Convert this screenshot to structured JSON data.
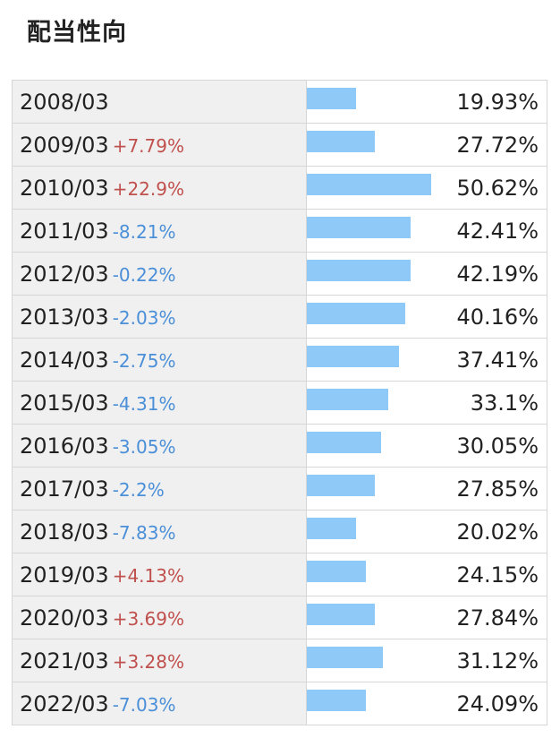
{
  "title": "配当性向",
  "chart_data": {
    "type": "bar",
    "title": "配当性向",
    "unit": "%",
    "rows": [
      {
        "year": "2008/03",
        "change": "",
        "value": 19.93,
        "display": "19.93%"
      },
      {
        "year": "2009/03",
        "change": "+7.79%",
        "value": 27.72,
        "display": "27.72%"
      },
      {
        "year": "2010/03",
        "change": "+22.9%",
        "value": 50.62,
        "display": "50.62%"
      },
      {
        "year": "2011/03",
        "change": "-8.21%",
        "value": 42.41,
        "display": "42.41%"
      },
      {
        "year": "2012/03",
        "change": "-0.22%",
        "value": 42.19,
        "display": "42.19%"
      },
      {
        "year": "2013/03",
        "change": "-2.03%",
        "value": 40.16,
        "display": "40.16%"
      },
      {
        "year": "2014/03",
        "change": "-2.75%",
        "value": 37.41,
        "display": "37.41%"
      },
      {
        "year": "2015/03",
        "change": "-4.31%",
        "value": 33.1,
        "display": "33.1%"
      },
      {
        "year": "2016/03",
        "change": "-3.05%",
        "value": 30.05,
        "display": "30.05%"
      },
      {
        "year": "2017/03",
        "change": "-2.2%",
        "value": 27.85,
        "display": "27.85%"
      },
      {
        "year": "2018/03",
        "change": "-7.83%",
        "value": 20.02,
        "display": "20.02%"
      },
      {
        "year": "2019/03",
        "change": "+4.13%",
        "value": 24.15,
        "display": "24.15%"
      },
      {
        "year": "2020/03",
        "change": "+3.69%",
        "value": 27.84,
        "display": "27.84%"
      },
      {
        "year": "2021/03",
        "change": "+3.28%",
        "value": 31.12,
        "display": "31.12%"
      },
      {
        "year": "2022/03",
        "change": "-7.03%",
        "value": 24.09,
        "display": "24.09%"
      }
    ],
    "colors": {
      "bar": "#8ec9f8",
      "up": "#c0504d",
      "down": "#4a8fd8"
    }
  }
}
